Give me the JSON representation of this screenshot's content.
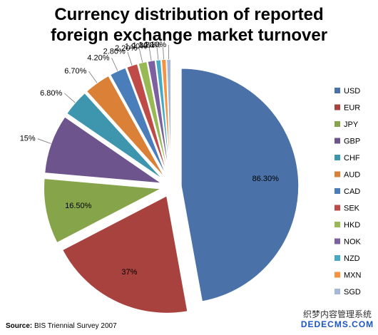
{
  "title_line1": "Currency distribution of reported",
  "title_line2": "foreign exchange market turnover",
  "source_prefix": "Source:",
  "source_text": "BIS Triennial Survey 2007",
  "watermark_line1": "织梦内容管理系统",
  "watermark_line2": "DEDECMS.COM",
  "chart_data": {
    "type": "pie",
    "title": "Currency distribution of reported foreign exchange market turnover",
    "legend_position": "right",
    "slices": [
      {
        "label": "USD",
        "value": 86.3,
        "value_label": "86.30%",
        "color": "#4a72a8"
      },
      {
        "label": "EUR",
        "value": 37,
        "value_label": "37%",
        "color": "#a8423f"
      },
      {
        "label": "JPY",
        "value": 16.5,
        "value_label": "16.50%",
        "color": "#86a44a"
      },
      {
        "label": "GBP",
        "value": 15,
        "value_label": "15%",
        "color": "#6e548d"
      },
      {
        "label": "CHF",
        "value": 6.8,
        "value_label": "6.80%",
        "color": "#3d96ae"
      },
      {
        "label": "AUD",
        "value": 6.7,
        "value_label": "6.70%",
        "color": "#da8137"
      },
      {
        "label": "CAD",
        "value": 4.2,
        "value_label": "4.20%",
        "color": "#4a7ebb"
      },
      {
        "label": "SEK",
        "value": 2.8,
        "value_label": "2.80%",
        "color": "#be4b48"
      },
      {
        "label": "HKD",
        "value": 2.2,
        "value_label": "2.20%",
        "color": "#98b954"
      },
      {
        "label": "NOK",
        "value": 1.9,
        "value_label": "1.90%",
        "color": "#7d60a0"
      },
      {
        "label": "NZD",
        "value": 1.3,
        "value_label": "1.30%",
        "color": "#46aac5"
      },
      {
        "label": "MXN",
        "value": 1.2,
        "value_label": "1.20%",
        "color": "#f69240"
      },
      {
        "label": "SGD",
        "value": 1.1,
        "value_label": "1.10%",
        "color": "#a5b8d8"
      }
    ]
  }
}
